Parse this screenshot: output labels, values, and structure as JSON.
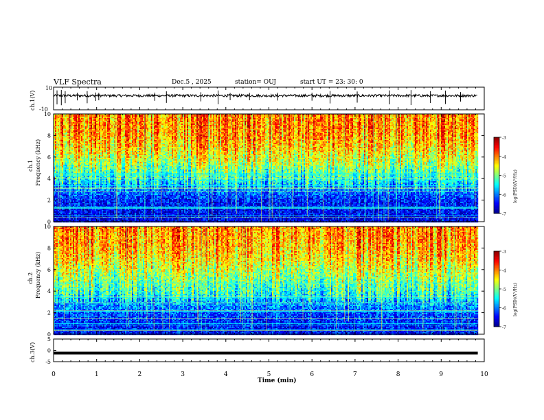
{
  "header": {
    "title": "VLF Spectra",
    "date": "Dec.5  , 2025",
    "station": "station= OUJ",
    "start": "start  UT  =   23: 30: 0"
  },
  "chart_data": [
    {
      "type": "line",
      "name": "ch1-waveform",
      "ylabel": "ch.1(V)",
      "ylim": [
        -10,
        10
      ],
      "yticks": [
        10,
        -10
      ],
      "xlim": [
        0,
        10
      ],
      "baseline_v": 2.5,
      "data_end_min": 9.85,
      "spikes_min": [
        0.08,
        0.18,
        0.27,
        0.55,
        0.78,
        0.98,
        1.05,
        2.35,
        2.62,
        3.42,
        3.82,
        4.1,
        4.55,
        5.2,
        6.0,
        6.42,
        7.05,
        7.8,
        8.3,
        8.75,
        9.1,
        9.45
      ]
    },
    {
      "type": "heatmap",
      "name": "ch1-spectrogram",
      "ylabel": "ch.1",
      "ylabel2": "Frequency (kHz)",
      "ylim": [
        0,
        10
      ],
      "yticks": [
        0,
        2,
        4,
        6,
        8,
        10
      ],
      "xlim": [
        0,
        10
      ],
      "data_end_min": 9.85,
      "colorbar": {
        "label": "log(PSD)(V²/Hz)",
        "range": [
          -7,
          -3
        ],
        "ticks": [
          "-3",
          "-4",
          "-5",
          "-6",
          "-7"
        ]
      },
      "level_by_freq_khz": [
        [
          0,
          -6.6
        ],
        [
          1,
          -6.5
        ],
        [
          2,
          -6.4
        ],
        [
          3,
          -6.0
        ],
        [
          4,
          -5.4
        ],
        [
          5,
          -5.0
        ],
        [
          6,
          -4.6
        ],
        [
          7,
          -4.3
        ],
        [
          8,
          -4.1
        ],
        [
          9,
          -4.0
        ],
        [
          10,
          -4.0
        ]
      ]
    },
    {
      "type": "heatmap",
      "name": "ch2-spectrogram",
      "ylabel": "ch.2",
      "ylabel2": "Frequency (kHz)",
      "ylim": [
        0,
        10
      ],
      "yticks": [
        0,
        2,
        4,
        6,
        8,
        10
      ],
      "xlim": [
        0,
        10
      ],
      "data_end_min": 9.85,
      "colorbar": {
        "label": "log(PSD)(V²/Hz)",
        "range": [
          -7,
          -3
        ],
        "ticks": [
          "-3",
          "-4",
          "-5",
          "-6",
          "-7"
        ]
      },
      "level_by_freq_khz": [
        [
          0,
          -6.5
        ],
        [
          1,
          -6.4
        ],
        [
          2,
          -6.2
        ],
        [
          3,
          -5.8
        ],
        [
          4,
          -5.3
        ],
        [
          5,
          -5.0
        ],
        [
          6,
          -4.7
        ],
        [
          7,
          -4.4
        ],
        [
          8,
          -4.2
        ],
        [
          9,
          -4.1
        ],
        [
          10,
          -4.0
        ]
      ]
    },
    {
      "type": "line",
      "name": "ch3-waveform",
      "ylabel": "ch.3(V)",
      "ylim": [
        -5,
        5
      ],
      "yticks": [
        5,
        0,
        -5
      ],
      "xlim": [
        0,
        10
      ],
      "baseline_v": -1.2,
      "data_end_min": 9.85
    }
  ],
  "xaxis": {
    "label": "Time  (min)",
    "ticks": [
      "0",
      "1",
      "2",
      "3",
      "4",
      "5",
      "6",
      "7",
      "8",
      "9",
      "10"
    ]
  },
  "colors": {
    "colormap": [
      "#000090",
      "#0000ff",
      "#0080ff",
      "#00ffff",
      "#80ff80",
      "#ffff00",
      "#ff8000",
      "#ff0000",
      "#900000"
    ]
  }
}
